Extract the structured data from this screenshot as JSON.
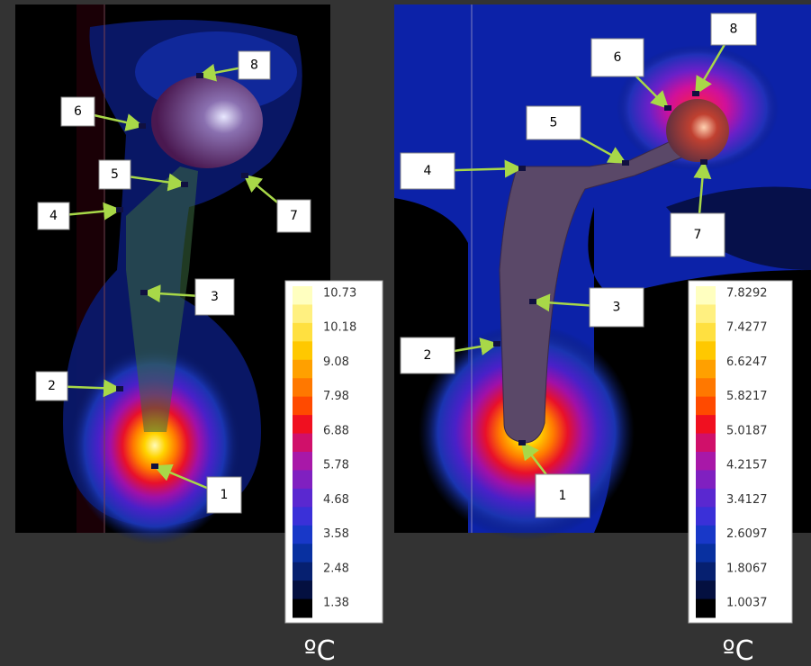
{
  "panels": [
    {
      "points": [
        "1",
        "2",
        "3",
        "4",
        "5",
        "6",
        "7",
        "8"
      ],
      "colorbar": {
        "labels": [
          "10.73",
          "10.18",
          "9.08",
          "7.98",
          "6.88",
          "5.78",
          "4.68",
          "3.58",
          "2.48",
          "1.38"
        ],
        "unit": "ºC"
      }
    },
    {
      "points": [
        "1",
        "2",
        "3",
        "4",
        "5",
        "6",
        "7",
        "8"
      ],
      "colorbar": {
        "labels": [
          "7.8292",
          "7.4277",
          "6.6247",
          "5.8217",
          "5.0187",
          "4.2157",
          "3.4127",
          "2.6097",
          "1.8067",
          "1.0037"
        ],
        "unit": "ºC"
      }
    }
  ]
}
